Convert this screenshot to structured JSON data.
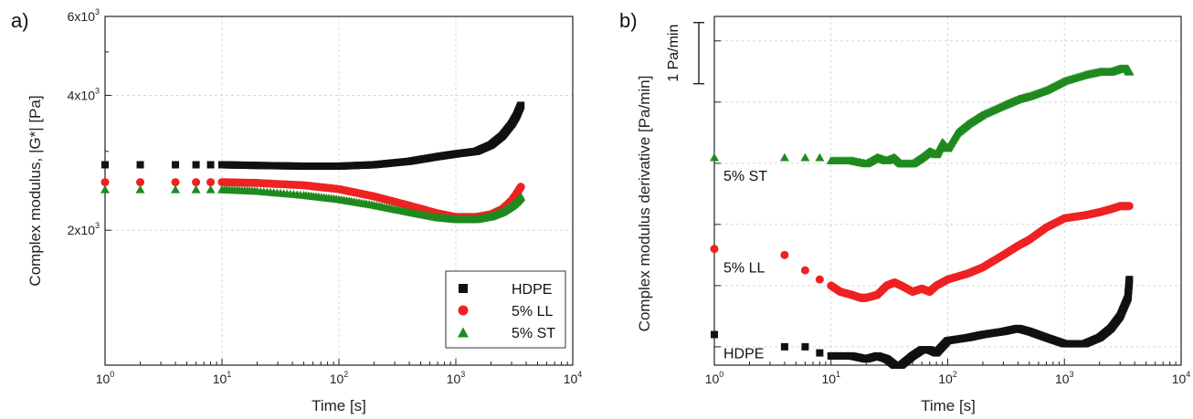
{
  "chart_data": [
    {
      "panel": "a)",
      "type": "scatter",
      "xlabel": "Time [s]",
      "ylabel": "Complex modulus, |G*| [Pa]",
      "x_scale": "log",
      "y_scale": "log",
      "xlim": [
        1,
        10000
      ],
      "ylim": [
        1000,
        6000
      ],
      "x_ticks": [
        {
          "base": "10",
          "exp": "0",
          "value": 1
        },
        {
          "base": "10",
          "exp": "1",
          "value": 10
        },
        {
          "base": "10",
          "exp": "2",
          "value": 100
        },
        {
          "base": "10",
          "exp": "3",
          "value": 1000
        },
        {
          "base": "10",
          "exp": "4",
          "value": 10000
        }
      ],
      "y_ticks": [
        {
          "base": "2x10",
          "exp": "3",
          "value": 2000
        },
        {
          "base": "4x10",
          "exp": "3",
          "value": 4000
        },
        {
          "base": "6x10",
          "exp": "3",
          "value": 6000
        }
      ],
      "grid": true,
      "legend_position": "bottom-right",
      "series": [
        {
          "name": "HDPE",
          "color": "#111111",
          "marker": "square",
          "x": [
            1,
            2,
            4,
            6,
            8,
            10,
            20,
            50,
            100,
            200,
            400,
            700,
            1000,
            1500,
            2000,
            2500,
            3000,
            3300,
            3600
          ],
          "y": [
            2800,
            2800,
            2800,
            2800,
            2800,
            2800,
            2790,
            2780,
            2780,
            2800,
            2850,
            2920,
            2960,
            3000,
            3100,
            3250,
            3450,
            3600,
            3800
          ]
        },
        {
          "name": "5% LL",
          "color": "#ee2222",
          "marker": "circle",
          "x": [
            1,
            2,
            4,
            6,
            8,
            10,
            20,
            50,
            100,
            200,
            400,
            700,
            1000,
            1500,
            2000,
            2500,
            3000,
            3300,
            3600
          ],
          "y": [
            2560,
            2560,
            2560,
            2560,
            2560,
            2560,
            2550,
            2520,
            2470,
            2380,
            2270,
            2180,
            2140,
            2140,
            2170,
            2230,
            2330,
            2410,
            2500
          ]
        },
        {
          "name": "5% ST",
          "color": "#1f8a1f",
          "marker": "triangle",
          "x": [
            1,
            2,
            4,
            6,
            8,
            10,
            20,
            50,
            100,
            200,
            400,
            700,
            1000,
            1500,
            2000,
            2500,
            3000,
            3300,
            3600
          ],
          "y": [
            2470,
            2470,
            2470,
            2470,
            2470,
            2470,
            2450,
            2400,
            2350,
            2280,
            2200,
            2140,
            2120,
            2120,
            2150,
            2200,
            2270,
            2320,
            2380
          ]
        }
      ]
    },
    {
      "panel": "b)",
      "type": "scatter",
      "xlabel": "Time [s]",
      "ylabel": "Complex modulus derivative [Pa/min]",
      "x_scale": "log",
      "xlim": [
        1,
        10000
      ],
      "ylim": [
        -1.3,
        4.4
      ],
      "x_ticks": [
        {
          "base": "10",
          "exp": "0",
          "value": 1
        },
        {
          "base": "10",
          "exp": "1",
          "value": 10
        },
        {
          "base": "10",
          "exp": "2",
          "value": 100
        },
        {
          "base": "10",
          "exp": "3",
          "value": 1000
        },
        {
          "base": "10",
          "exp": "4",
          "value": 10000
        }
      ],
      "y_tick_values": [
        -1,
        0,
        1,
        2,
        3,
        4
      ],
      "y_tick_labels_shown": false,
      "grid": true,
      "scale_bar": {
        "label": "1 Pa/min",
        "from": 3.3,
        "to": 4.3
      },
      "series_labels": [
        "5% ST",
        "5% LL",
        "HDPE"
      ],
      "series": [
        {
          "name": "5% ST",
          "color": "#1f8a1f",
          "marker": "triangle",
          "x": [
            1,
            4,
            6,
            8,
            10,
            15,
            20,
            25,
            30,
            35,
            40,
            50,
            60,
            70,
            80,
            90,
            100,
            120,
            150,
            200,
            300,
            400,
            500,
            700,
            1000,
            1500,
            2000,
            2500,
            3000,
            3500,
            3600
          ],
          "y": [
            2.1,
            2.1,
            2.1,
            2.1,
            2.05,
            2.05,
            2.0,
            2.1,
            2.05,
            2.1,
            2.0,
            2.0,
            2.1,
            2.2,
            2.15,
            2.35,
            2.25,
            2.5,
            2.65,
            2.8,
            2.95,
            3.05,
            3.1,
            3.2,
            3.35,
            3.45,
            3.5,
            3.5,
            3.55,
            3.55,
            3.5
          ]
        },
        {
          "name": "5% LL",
          "color": "#ee2222",
          "marker": "circle",
          "x": [
            1,
            4,
            6,
            8,
            10,
            12,
            15,
            18,
            20,
            25,
            30,
            35,
            40,
            50,
            60,
            70,
            80,
            100,
            150,
            200,
            300,
            400,
            500,
            700,
            1000,
            1500,
            2000,
            2500,
            3000,
            3600
          ],
          "y": [
            0.6,
            0.5,
            0.25,
            0.1,
            0.0,
            -0.1,
            -0.15,
            -0.2,
            -0.2,
            -0.15,
            0.0,
            0.05,
            0.0,
            -0.1,
            -0.05,
            -0.1,
            0.0,
            0.1,
            0.2,
            0.3,
            0.5,
            0.65,
            0.75,
            0.95,
            1.1,
            1.15,
            1.2,
            1.25,
            1.3,
            1.3
          ]
        },
        {
          "name": "HDPE",
          "color": "#111111",
          "marker": "square",
          "x": [
            1,
            4,
            6,
            8,
            10,
            15,
            20,
            25,
            30,
            35,
            40,
            50,
            60,
            70,
            80,
            100,
            150,
            200,
            300,
            400,
            500,
            700,
            1000,
            1500,
            2000,
            2500,
            3000,
            3500,
            3600
          ],
          "y": [
            -0.8,
            -1.0,
            -1.0,
            -1.1,
            -1.15,
            -1.15,
            -1.2,
            -1.15,
            -1.2,
            -1.3,
            -1.3,
            -1.15,
            -1.05,
            -1.05,
            -1.1,
            -0.9,
            -0.85,
            -0.8,
            -0.75,
            -0.7,
            -0.75,
            -0.85,
            -0.95,
            -0.95,
            -0.85,
            -0.7,
            -0.5,
            -0.2,
            0.1
          ]
        }
      ]
    }
  ]
}
